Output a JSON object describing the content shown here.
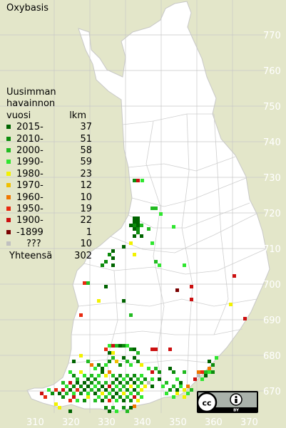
{
  "title": "Oxybasis",
  "legend": {
    "header": [
      "Uusimman",
      "havainnon"
    ],
    "col_year": "vuosi",
    "col_count": "lkm",
    "entries": [
      {
        "label": "2015-",
        "count": "37",
        "color": "#006400"
      },
      {
        "label": "2010-",
        "count": "51",
        "color": "#0d8c0d"
      },
      {
        "label": "2000-",
        "count": "58",
        "color": "#22bb22"
      },
      {
        "label": "1990-",
        "count": "59",
        "color": "#2fe62f"
      },
      {
        "label": "1980-",
        "count": "23",
        "color": "#f2f200"
      },
      {
        "label": "1970-",
        "count": "12",
        "color": "#f0c000"
      },
      {
        "label": "1960-",
        "count": "10",
        "color": "#f07800"
      },
      {
        "label": "1950-",
        "count": "19",
        "color": "#e82a10"
      },
      {
        "label": "1900-",
        "count": "22",
        "color": "#cc1010"
      },
      {
        "label": "-1899",
        "count": "1",
        "color": "#7a0000"
      },
      {
        "label": "???",
        "count": "10",
        "color": "#c0c0c0"
      }
    ],
    "total_label": "Yhteensä",
    "total_count": "302"
  },
  "grid_labels": {
    "northing": [
      "770",
      "760",
      "750",
      "740",
      "730",
      "720",
      "710",
      "700",
      "690",
      "680",
      "670"
    ],
    "easting": [
      "310",
      "320",
      "330",
      "340",
      "350",
      "360",
      "370"
    ]
  },
  "license": {
    "cc": "cc",
    "by": "BY"
  }
}
